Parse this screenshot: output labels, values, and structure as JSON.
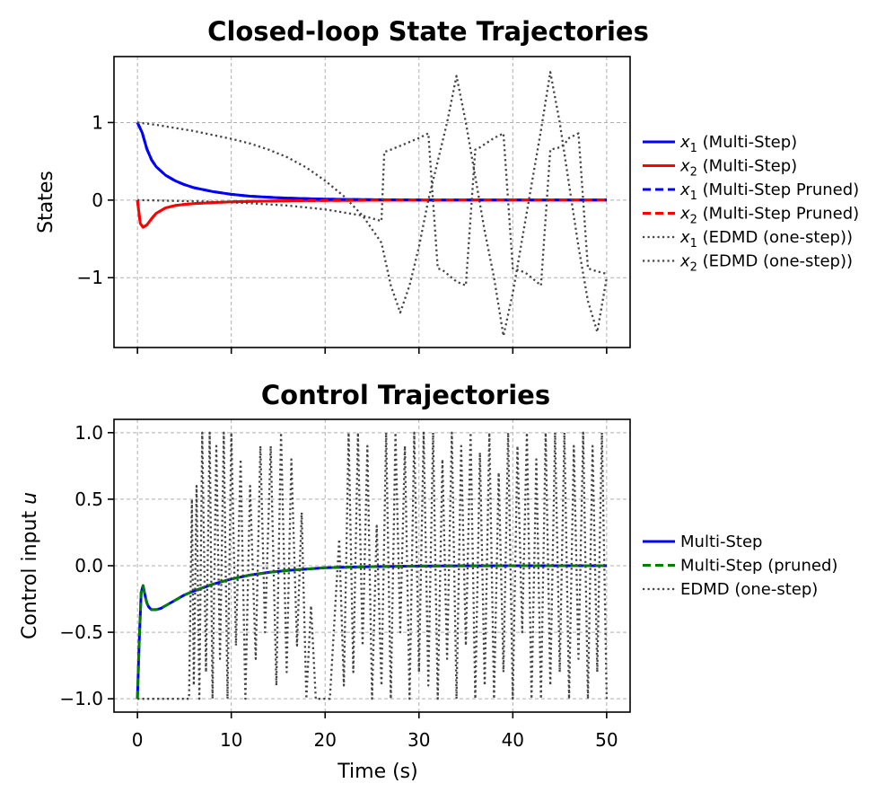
{
  "chart_data": [
    {
      "type": "line",
      "title": "Closed-loop State Trajectories",
      "xlabel": "",
      "ylabel": "States",
      "xlim": [
        -2.5,
        52.5
      ],
      "ylim": [
        -1.9,
        1.85
      ],
      "xticks": [
        0,
        10,
        20,
        30,
        40,
        50
      ],
      "yticks": [
        1,
        0,
        -1
      ],
      "ytick_labels": [
        "1",
        "0",
        "−1"
      ],
      "grid": true,
      "legend_placement": "outside right",
      "series": [
        {
          "name_var": "x",
          "name_sub": "1",
          "name_rest": " (Multi-Step)",
          "color": "#0000ff",
          "style": "solid",
          "x": [
            0,
            0.5,
            1,
            1.5,
            2,
            3,
            4,
            5,
            6,
            8,
            10,
            12,
            15,
            18,
            20,
            25,
            30,
            35,
            40,
            45,
            50
          ],
          "y": [
            1.0,
            0.87,
            0.66,
            0.52,
            0.43,
            0.32,
            0.25,
            0.2,
            0.16,
            0.11,
            0.075,
            0.05,
            0.03,
            0.018,
            0.012,
            0.005,
            0.002,
            0.001,
            0.0,
            0.0,
            0.0
          ]
        },
        {
          "name_var": "x",
          "name_sub": "2",
          "name_rest": " (Multi-Step)",
          "color": "#ff0000",
          "style": "solid",
          "x": [
            0,
            0.3,
            0.6,
            1,
            1.5,
            2,
            3,
            4,
            5,
            6,
            8,
            10,
            12,
            15,
            18,
            20,
            25,
            30,
            35,
            40,
            45,
            50
          ],
          "y": [
            0.0,
            -0.3,
            -0.35,
            -0.32,
            -0.24,
            -0.17,
            -0.1,
            -0.07,
            -0.055,
            -0.045,
            -0.032,
            -0.023,
            -0.017,
            -0.011,
            -0.007,
            -0.005,
            -0.002,
            -0.001,
            0.0,
            0.0,
            0.0,
            0.0
          ]
        },
        {
          "name_var": "x",
          "name_sub": "1",
          "name_rest": " (Multi-Step Pruned)",
          "color": "#0000ff",
          "style": "dashed",
          "x": [
            0,
            0.5,
            1,
            1.5,
            2,
            3,
            4,
            5,
            6,
            8,
            10,
            12,
            15,
            18,
            20,
            25,
            30,
            35,
            40,
            45,
            50
          ],
          "y": [
            1.0,
            0.87,
            0.66,
            0.52,
            0.43,
            0.32,
            0.25,
            0.2,
            0.16,
            0.11,
            0.075,
            0.05,
            0.03,
            0.018,
            0.012,
            0.005,
            0.002,
            0.001,
            0.0,
            0.0,
            0.0
          ]
        },
        {
          "name_var": "x",
          "name_sub": "2",
          "name_rest": " (Multi-Step Pruned)",
          "color": "#ff0000",
          "style": "dashed",
          "x": [
            0,
            0.3,
            0.6,
            1,
            1.5,
            2,
            3,
            4,
            5,
            6,
            8,
            10,
            12,
            15,
            18,
            20,
            25,
            30,
            35,
            40,
            45,
            50
          ],
          "y": [
            0.0,
            -0.3,
            -0.35,
            -0.32,
            -0.24,
            -0.17,
            -0.1,
            -0.07,
            -0.055,
            -0.045,
            -0.032,
            -0.023,
            -0.017,
            -0.011,
            -0.007,
            -0.005,
            -0.002,
            -0.001,
            0.0,
            0.0,
            0.0,
            0.0
          ]
        },
        {
          "name_var": "x",
          "name_sub": "1",
          "name_rest": " (EDMD (one-step))",
          "color": "#444444",
          "style": "dotted",
          "x": [
            0,
            2,
            4,
            6,
            8,
            10,
            12,
            14,
            16,
            18,
            20,
            22,
            24,
            26,
            27,
            28,
            29,
            30,
            31,
            32,
            33,
            34,
            35,
            36,
            37,
            38,
            39,
            40,
            41,
            42,
            43,
            44,
            45,
            46,
            47,
            48,
            49,
            50
          ],
          "y": [
            1.0,
            0.97,
            0.93,
            0.89,
            0.84,
            0.79,
            0.73,
            0.65,
            0.55,
            0.42,
            0.25,
            0.05,
            -0.2,
            -0.55,
            -1.1,
            -1.45,
            -1.1,
            -0.6,
            0.0,
            0.5,
            1.0,
            1.6,
            1.0,
            0.3,
            -0.4,
            -1.0,
            -1.75,
            -1.2,
            -0.5,
            0.2,
            0.9,
            1.65,
            1.0,
            0.2,
            -0.6,
            -1.3,
            -1.7,
            -1.0
          ]
        },
        {
          "name_var": "x",
          "name_sub": "2",
          "name_rest": " (EDMD (one-step))",
          "color": "#444444",
          "style": "dotted",
          "x": [
            0,
            4,
            8,
            12,
            16,
            20,
            24,
            26,
            26.3,
            27,
            28,
            30,
            31,
            32,
            32.5,
            33,
            34,
            35,
            36,
            36.5,
            37,
            38,
            39,
            40,
            41,
            41.5,
            42,
            43,
            44,
            45,
            45.5,
            46,
            47,
            48,
            49,
            50
          ],
          "y": [
            0.0,
            -0.01,
            -0.02,
            -0.04,
            -0.07,
            -0.12,
            -0.2,
            -0.27,
            0.62,
            0.65,
            0.7,
            0.8,
            0.86,
            -0.88,
            -0.9,
            -0.95,
            -1.05,
            -1.1,
            0.65,
            0.68,
            0.72,
            0.8,
            0.86,
            -0.88,
            -0.92,
            -0.95,
            -1.0,
            -1.1,
            0.65,
            0.68,
            0.72,
            0.8,
            0.86,
            -0.88,
            -0.92,
            -0.95
          ]
        }
      ]
    },
    {
      "type": "line",
      "title": "Control Trajectories",
      "xlabel": "Time (s)",
      "ylabel_text": "Control input ",
      "ylabel_var": "u",
      "xlim": [
        -2.5,
        52.5
      ],
      "ylim": [
        -1.1,
        1.1
      ],
      "xticks": [
        0,
        10,
        20,
        30,
        40,
        50
      ],
      "yticks": [
        1.0,
        0.5,
        0.0,
        -0.5,
        -1.0
      ],
      "ytick_labels": [
        "1.0",
        "0.5",
        "0.0",
        "−0.5",
        "−1.0"
      ],
      "grid": true,
      "legend_placement": "outside right",
      "series": [
        {
          "name": "Multi-Step",
          "color": "#0000ff",
          "style": "solid",
          "x": [
            0,
            0.2,
            0.4,
            0.6,
            0.8,
            1.0,
            1.2,
            1.5,
            2,
            2.5,
            3,
            4,
            5,
            6,
            8,
            10,
            12,
            14,
            16,
            18,
            20,
            25,
            30,
            35,
            40,
            45,
            50
          ],
          "y": [
            -1.0,
            -0.55,
            -0.2,
            -0.15,
            -0.22,
            -0.28,
            -0.31,
            -0.33,
            -0.33,
            -0.32,
            -0.3,
            -0.26,
            -0.22,
            -0.19,
            -0.14,
            -0.1,
            -0.07,
            -0.05,
            -0.035,
            -0.025,
            -0.015,
            -0.007,
            -0.003,
            -0.001,
            0.0,
            0.0,
            0.0
          ]
        },
        {
          "name": "Multi-Step (pruned)",
          "color": "#008000",
          "style": "dashed",
          "x": [
            0,
            0.2,
            0.4,
            0.6,
            0.8,
            1.0,
            1.2,
            1.5,
            2,
            2.5,
            3,
            4,
            5,
            6,
            8,
            10,
            12,
            14,
            16,
            18,
            20,
            25,
            30,
            35,
            40,
            45,
            50
          ],
          "y": [
            -1.0,
            -0.55,
            -0.2,
            -0.15,
            -0.22,
            -0.28,
            -0.31,
            -0.33,
            -0.33,
            -0.32,
            -0.3,
            -0.26,
            -0.22,
            -0.19,
            -0.14,
            -0.1,
            -0.07,
            -0.05,
            -0.035,
            -0.025,
            -0.015,
            -0.007,
            -0.003,
            -0.001,
            0.0,
            0.0,
            0.0
          ]
        },
        {
          "name": "EDMD (one-step)",
          "color": "#444444",
          "style": "dotted",
          "x": [
            0,
            5.5,
            5.8,
            6.0,
            6.3,
            6.6,
            6.9,
            7.3,
            7.7,
            8.0,
            8.4,
            8.8,
            9.2,
            9.6,
            10.0,
            10.5,
            11.0,
            11.5,
            12.0,
            12.6,
            13.1,
            13.6,
            14.2,
            14.8,
            15.3,
            15.9,
            16.4,
            17.0,
            17.5,
            18.0,
            18.5,
            19.0,
            20.5,
            21.5,
            22.0,
            22.5,
            23.0,
            23.5,
            24.0,
            24.5,
            25.0,
            25.5,
            26.0,
            26.5,
            27.0,
            27.5,
            28.0,
            28.5,
            29.0,
            29.5,
            30.0,
            30.5,
            31.0,
            31.5,
            32.0,
            32.5,
            33.0,
            33.5,
            34.0,
            34.5,
            35.0,
            35.5,
            36.0,
            36.5,
            37.0,
            37.5,
            38.0,
            38.5,
            39.0,
            39.5,
            40.0,
            40.5,
            41.0,
            41.5,
            42.0,
            42.5,
            43.0,
            43.5,
            44.0,
            44.5,
            45.0,
            45.5,
            46.0,
            46.5,
            47.0,
            47.5,
            48.0,
            48.5,
            49.0,
            49.5,
            50.0
          ],
          "y": [
            -1.0,
            -1.0,
            0.5,
            -0.9,
            0.6,
            -1.0,
            1.0,
            -0.8,
            1.0,
            -1.0,
            0.9,
            -0.7,
            1.0,
            -1.0,
            1.0,
            -0.6,
            0.8,
            -1.0,
            0.6,
            -0.7,
            0.9,
            -0.5,
            0.9,
            -0.9,
            1.0,
            -0.8,
            0.8,
            -0.6,
            0.4,
            -1.0,
            -0.3,
            -1.0,
            -1.0,
            0.2,
            -0.9,
            1.0,
            -0.8,
            1.0,
            -0.6,
            0.9,
            -1.0,
            0.3,
            -0.9,
            1.0,
            -1.0,
            1.0,
            -0.5,
            0.9,
            -1.0,
            1.0,
            -0.8,
            1.0,
            -0.9,
            1.0,
            -1.0,
            0.8,
            -0.7,
            1.0,
            -1.0,
            0.9,
            -0.6,
            1.0,
            -1.0,
            0.85,
            -0.9,
            1.0,
            -1.0,
            0.7,
            -0.8,
            1.0,
            -1.0,
            0.9,
            -0.5,
            1.0,
            -1.0,
            0.8,
            -1.0,
            1.0,
            -0.9,
            1.0,
            -0.8,
            1.0,
            -1.0,
            0.9,
            -0.7,
            1.0,
            -1.0,
            0.9,
            -0.8,
            1.0,
            -1.0
          ]
        }
      ]
    }
  ]
}
